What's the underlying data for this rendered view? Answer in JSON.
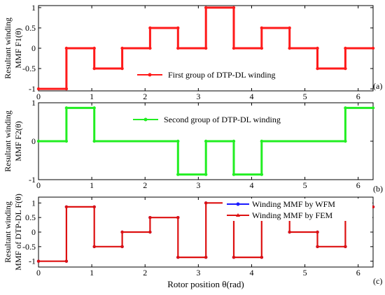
{
  "colors": {
    "red": "#ff1a1a",
    "green": "#22ee22",
    "blue": "#1a1aff",
    "darkred": "#dd1111"
  },
  "xlabel": "Rotor position θ(rad)",
  "panels": [
    {
      "tag": "(a)",
      "ylabel_line1": "Resultant winding",
      "ylabel_line2": "MMF  F1(θ)",
      "legend": [
        "First group of DTP-DL winding"
      ]
    },
    {
      "tag": "(b)",
      "ylabel_line1": "Resultant winding",
      "ylabel_line2": "MMF  F2(θ)",
      "legend": [
        "Second group of DTP-DL winding"
      ]
    },
    {
      "tag": "(c)",
      "ylabel_line1": "Resultant winding",
      "ylabel_line2": "MMF of DTP-DL F(θ)",
      "legend": [
        "Winding MMF  by WFM",
        "Winding MMF  by FEM"
      ]
    }
  ],
  "chart_data": [
    {
      "type": "line",
      "xlim": [
        0,
        6.28
      ],
      "ylim": [
        -1.05,
        1.05
      ],
      "yticks": [
        -1,
        -0.5,
        0,
        0.5,
        1
      ],
      "xticks": [
        0,
        1,
        2,
        3,
        4,
        5,
        6
      ],
      "series": [
        {
          "name": "First group of DTP-DL winding",
          "color": "red",
          "step_edges": [
            0,
            0.524,
            1.047,
            1.571,
            2.094,
            2.618,
            3.142,
            3.665,
            4.189,
            4.712,
            5.236,
            5.76,
            6.283
          ],
          "step_values": [
            -1,
            0,
            -0.5,
            0,
            0.5,
            0,
            1,
            0,
            0.5,
            0,
            -0.5,
            0
          ]
        }
      ]
    },
    {
      "type": "line",
      "xlim": [
        0,
        6.28
      ],
      "ylim": [
        -1.0,
        1.0
      ],
      "yticks": [
        -1,
        0,
        1
      ],
      "xticks": [
        0,
        1,
        2,
        3,
        4,
        5,
        6
      ],
      "series": [
        {
          "name": "Second group of DTP-DL winding",
          "color": "green",
          "step_edges": [
            0,
            0.524,
            1.047,
            2.618,
            3.142,
            3.665,
            4.189,
            5.76,
            6.283
          ],
          "step_values": [
            0,
            0.866,
            0,
            -0.866,
            0,
            -0.866,
            0,
            0.866
          ]
        }
      ]
    },
    {
      "type": "line",
      "xlim": [
        0,
        6.28
      ],
      "ylim": [
        -1.2,
        1.2
      ],
      "yticks": [
        -1,
        -0.5,
        0,
        0.5,
        1
      ],
      "xticks": [
        0,
        1,
        2,
        3,
        4,
        5,
        6
      ],
      "series": [
        {
          "name": "Winding MMF  by WFM",
          "color": "blue",
          "step_edges": [
            0,
            0.524,
            1.047,
            1.571,
            2.094,
            2.618,
            3.142,
            3.665,
            4.189,
            4.712,
            5.236,
            5.76,
            6.283
          ],
          "step_values": [
            -1,
            0.866,
            -0.5,
            0,
            0.5,
            -0.866,
            1,
            -0.866,
            0.5,
            0,
            -0.5,
            0.866
          ]
        },
        {
          "name": "Winding MMF  by FEM",
          "color": "darkred",
          "step_edges": [
            0,
            0.524,
            1.047,
            1.571,
            2.094,
            2.618,
            3.142,
            3.665,
            4.189,
            4.712,
            5.236,
            5.76,
            6.283
          ],
          "step_values": [
            -1,
            0.866,
            -0.5,
            0,
            0.5,
            -0.866,
            1,
            -0.866,
            0.5,
            0,
            -0.5,
            0.866
          ]
        }
      ]
    }
  ]
}
